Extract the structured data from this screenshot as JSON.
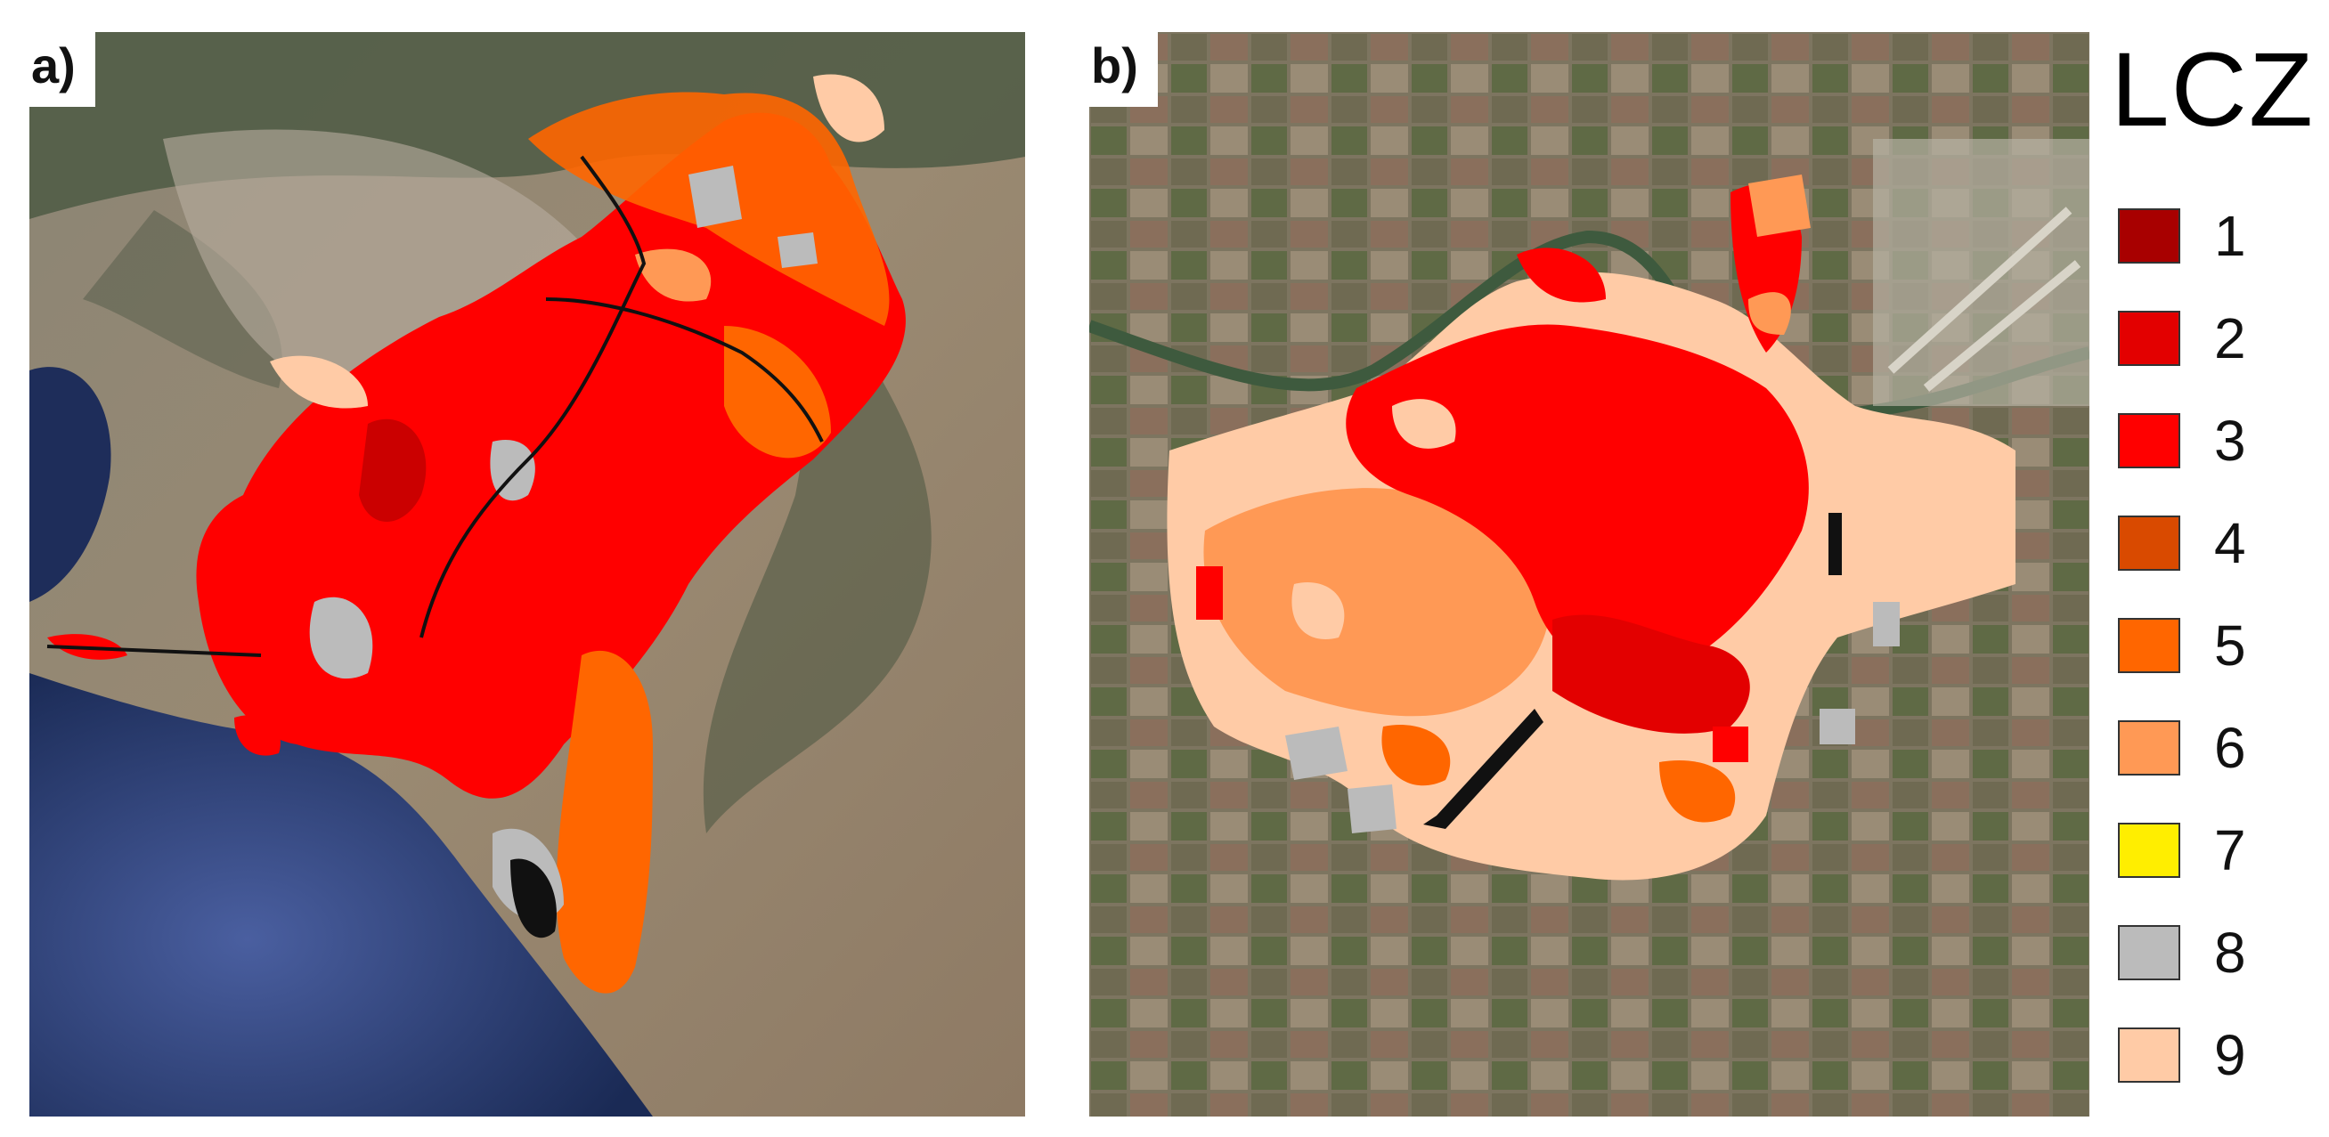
{
  "panels": [
    {
      "label": "a)"
    },
    {
      "label": "b)"
    }
  ],
  "legend": {
    "title": "LCZ",
    "items": [
      {
        "label": "1",
        "color": "#A80000"
      },
      {
        "label": "2",
        "color": "#E30000"
      },
      {
        "label": "3",
        "color": "#FF0000"
      },
      {
        "label": "4",
        "color": "#D94A00"
      },
      {
        "label": "5",
        "color": "#FF6600"
      },
      {
        "label": "6",
        "color": "#FF9955"
      },
      {
        "label": "7",
        "color": "#FFEE00"
      },
      {
        "label": "8",
        "color": "#BBBBBB"
      },
      {
        "label": "9",
        "color": "#FFCBA6"
      }
    ]
  }
}
